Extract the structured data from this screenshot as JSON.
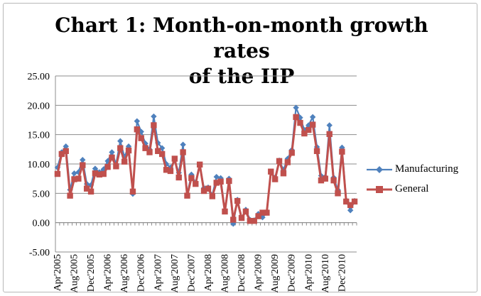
{
  "chart_data": {
    "type": "line",
    "title_lines": [
      "Chart 1: Month-on-month growth rates",
      "of the IIP"
    ],
    "xlabel": "",
    "ylabel": "",
    "ylim": [
      -5,
      25
    ],
    "y_ticks": [
      "-5.00",
      "0.00",
      "5.00",
      "10.00",
      "15.00",
      "20.00",
      "25.00"
    ],
    "x_tick_labels": [
      "Apr'2005",
      "Aug'2005",
      "Dec'2005",
      "Apr'2006",
      "Aug'2006",
      "Dec'2006",
      "Apr'2007",
      "Aug'2007",
      "Dec'2007",
      "Apr'2008",
      "Aug'2008",
      "Dec'2008",
      "Apr'2009",
      "Aug'2009",
      "Dec'2009",
      "Apr'2010",
      "Aug'2010",
      "Dec'2010"
    ],
    "grid": "horizontal",
    "legend_position": "right",
    "series": [
      {
        "name": "Manufacturing",
        "color": "#4f81bd",
        "marker": "diamond",
        "values": [
          9.4,
          12.0,
          13.0,
          5.6,
          8.4,
          8.6,
          10.7,
          6.6,
          6.4,
          9.2,
          8.6,
          9.1,
          10.5,
          12.0,
          10.0,
          13.9,
          11.2,
          13.0,
          4.9,
          17.3,
          15.5,
          13.5,
          12.5,
          18.1,
          13.6,
          12.7,
          10.0,
          9.4,
          10.6,
          8.5,
          13.3,
          4.8,
          8.2,
          6.8,
          9.9,
          5.9,
          6.0,
          4.7,
          7.8,
          7.6,
          2.0,
          7.5,
          -0.2,
          3.9,
          0.8,
          2.2,
          0.5,
          0.4,
          1.5,
          0.9,
          1.7,
          8.5,
          7.7,
          10.6,
          9.0,
          10.9,
          12.4,
          19.6,
          17.9,
          15.8,
          16.6,
          18.0,
          12.9,
          8.0,
          7.8,
          16.6,
          7.7,
          5.6,
          12.8,
          3.8,
          2.1,
          3.7
        ]
      },
      {
        "name": "General",
        "color": "#c0504d",
        "marker": "square",
        "values": [
          8.3,
          11.7,
          12.2,
          4.6,
          7.4,
          7.5,
          9.8,
          5.8,
          5.3,
          8.4,
          8.2,
          8.3,
          9.5,
          11.1,
          9.6,
          12.7,
          10.4,
          12.3,
          5.3,
          15.9,
          14.4,
          12.7,
          12.0,
          16.6,
          12.2,
          11.7,
          9.0,
          8.8,
          10.9,
          7.7,
          12.0,
          4.6,
          7.6,
          6.6,
          9.9,
          5.4,
          5.8,
          4.5,
          6.8,
          7.0,
          1.9,
          7.1,
          0.5,
          3.7,
          0.8,
          1.9,
          0.3,
          0.3,
          1.1,
          1.7,
          1.7,
          8.7,
          7.4,
          10.5,
          8.4,
          10.3,
          11.9,
          18.0,
          17.0,
          15.2,
          15.8,
          16.7,
          12.2,
          7.2,
          7.5,
          15.1,
          7.2,
          5.0,
          12.1,
          3.6,
          3.0,
          3.6
        ]
      }
    ]
  }
}
